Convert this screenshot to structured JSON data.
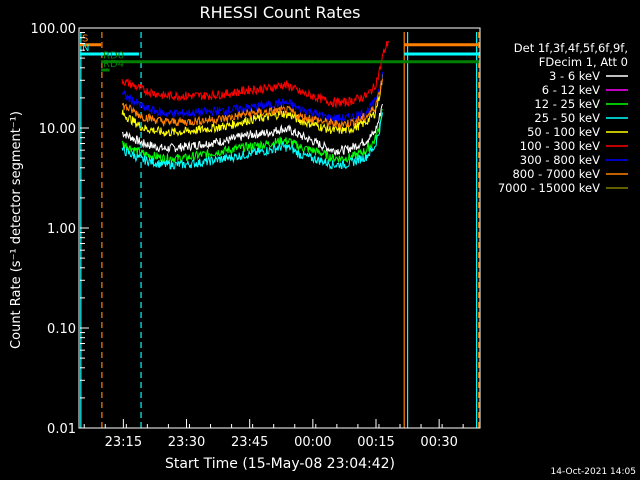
{
  "chart_data": {
    "type": "line",
    "title": "RHESSI Count Rates",
    "xlabel": "Start Time (15-May-08 23:04:42)",
    "ylabel": "Count Rate (s⁻¹ detector segment⁻¹)",
    "yscale": "log",
    "ylim": [
      0.01,
      100
    ],
    "y_ticks": [
      "0.01",
      "0.10",
      "1.00",
      "10.00",
      "100.00"
    ],
    "x_unit": "minutes after 23:04:42",
    "xlim": [
      0,
      95
    ],
    "x_ticks": [
      {
        "label": "23:15",
        "t": 10.3
      },
      {
        "label": "23:30",
        "t": 25.3
      },
      {
        "label": "23:45",
        "t": 40.3
      },
      {
        "label": "00:00",
        "t": 55.3
      },
      {
        "label": "00:15",
        "t": 70.3
      },
      {
        "label": "00:30",
        "t": 85.3
      }
    ],
    "legend_header": [
      "Det 1f,3f,4f,5f,6f,9f,",
      "FDecim 1, Att 0"
    ],
    "legend_position": "right",
    "grid": false,
    "timestamp": "14-Oct-2021 14:05",
    "x": [
      2,
      5,
      7,
      10,
      15,
      20,
      25,
      30,
      35,
      40,
      45,
      48,
      50,
      52,
      55,
      58,
      60,
      63,
      65,
      68,
      70,
      71,
      72,
      73.5
    ],
    "series": [
      {
        "name": "3 - 6 keV",
        "color": "#ffffff",
        "values": [
          null,
          null,
          null,
          9.0,
          7.0,
          6.2,
          6.5,
          7.0,
          7.5,
          8.5,
          9.0,
          9.8,
          9.5,
          8.5,
          7.5,
          6.5,
          6.0,
          6.0,
          6.5,
          7.5,
          9.0,
          12,
          20,
          null
        ]
      },
      {
        "name": "6 - 12 keV",
        "color": "#ff00ff",
        "values": [
          null,
          null,
          null,
          null,
          null,
          null,
          null,
          null,
          null,
          null,
          null,
          null,
          null,
          null,
          null,
          null,
          null,
          null,
          null,
          null,
          null,
          null,
          null,
          null
        ]
      },
      {
        "name": "12 - 25 keV",
        "color": "#00ff00",
        "values": [
          null,
          null,
          null,
          7.0,
          5.5,
          5.0,
          5.0,
          5.5,
          6.0,
          6.5,
          7.0,
          7.5,
          7.3,
          6.5,
          6.0,
          5.5,
          5.0,
          5.0,
          5.2,
          6.0,
          7.5,
          10,
          18,
          null
        ]
      },
      {
        "name": "25 - 50 keV",
        "color": "#00ffff",
        "values": [
          null,
          null,
          null,
          6.0,
          4.8,
          4.3,
          4.3,
          4.6,
          5.0,
          5.5,
          6.0,
          6.5,
          6.3,
          5.5,
          5.0,
          4.6,
          4.3,
          4.3,
          4.6,
          5.2,
          6.5,
          9,
          15,
          null
        ]
      },
      {
        "name": "50 - 100 keV",
        "color": "#ffff00",
        "values": [
          null,
          null,
          null,
          14,
          10,
          9.0,
          9.2,
          9.8,
          10.5,
          12,
          13,
          14,
          13.5,
          12,
          11,
          10,
          9.5,
          9.5,
          10,
          11.5,
          14,
          20,
          35,
          null
        ]
      },
      {
        "name": "100 - 300 keV",
        "color": "#ff0000",
        "values": [
          null,
          null,
          null,
          30,
          24,
          21,
          21,
          21,
          22,
          24,
          25,
          27,
          26,
          23,
          21,
          19,
          18,
          18,
          19,
          21,
          26,
          35,
          55,
          80
        ]
      },
      {
        "name": "300 - 800 keV",
        "color": "#0000ff",
        "values": [
          null,
          null,
          null,
          22,
          16,
          14,
          14,
          14.5,
          15,
          16,
          17,
          18,
          17.5,
          15.5,
          14.5,
          13,
          12.5,
          12.5,
          13,
          14.5,
          18,
          25,
          40,
          null
        ]
      },
      {
        "name": "800 - 7000 keV",
        "color": "#ff8000",
        "values": [
          null,
          null,
          null,
          17,
          13,
          11.5,
          11.5,
          12,
          12.5,
          14,
          14.5,
          15,
          14.8,
          13,
          12.5,
          11.5,
          11,
          11,
          11.5,
          13,
          16,
          22,
          35,
          null
        ]
      },
      {
        "name": "7000 - 15000 keV",
        "color": "#808000",
        "values": [
          null,
          null,
          null,
          null,
          null,
          null,
          null,
          null,
          null,
          null,
          null,
          null,
          null,
          null,
          null,
          null,
          null,
          null,
          null,
          null,
          null,
          null,
          null,
          null
        ]
      }
    ],
    "flag_bars": [
      {
        "label": "S",
        "color": "#ff8000",
        "segments": [
          [
            0,
            5
          ],
          [
            77,
            95
          ]
        ],
        "level": 68
      },
      {
        "label": "N",
        "color": "#00ffff",
        "segments": [
          [
            0,
            14
          ],
          [
            77,
            95
          ]
        ],
        "level": 55
      },
      {
        "label": "RD0",
        "color": "#008000",
        "segments": [
          [
            5,
            48
          ],
          [
            48,
            56
          ],
          [
            56,
            95
          ]
        ],
        "level": 46
      },
      {
        "label": "RD4",
        "color": "#008000",
        "segments": [
          [
            5,
            7
          ]
        ],
        "level": 38
      }
    ],
    "markers": [
      {
        "color": "#00ffff",
        "style": "solid",
        "t": 0.2
      },
      {
        "color": "#ff8000",
        "style": "dashed",
        "t": 5.2
      },
      {
        "color": "#00ffff",
        "style": "dashed",
        "t": 14.5
      },
      {
        "color": "#ff8000",
        "style": "solid",
        "t": 77
      },
      {
        "color": "#00ffff",
        "style": "solid",
        "t": 77.8
      },
      {
        "color": "#00ffff",
        "style": "solid",
        "t": 94.2
      },
      {
        "color": "#ff8000",
        "style": "dashed",
        "t": 94.7
      }
    ]
  }
}
